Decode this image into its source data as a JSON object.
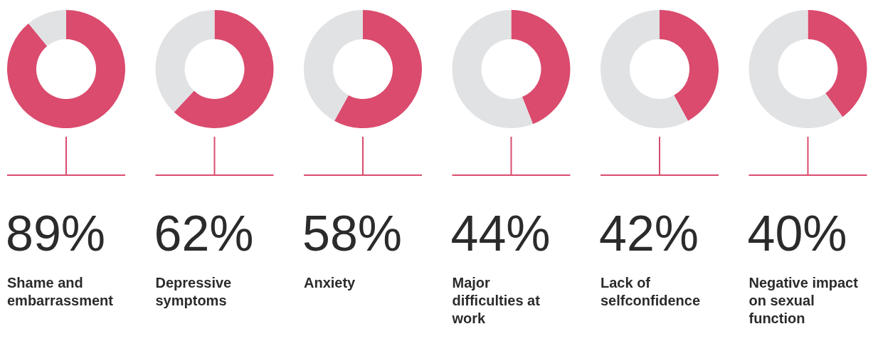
{
  "chart_data": [
    {
      "type": "donut",
      "title": "Shame and embarrassment",
      "categories": [
        null,
        null
      ],
      "values": [
        89,
        11
      ],
      "colors": [
        "#da4b6e",
        "#e1e2e4"
      ],
      "annotations": [
        "89%"
      ]
    },
    {
      "type": "donut",
      "title": "Depressive symptoms",
      "categories": [
        null,
        null
      ],
      "values": [
        62,
        38
      ],
      "colors": [
        "#da4b6e",
        "#e1e2e4"
      ],
      "annotations": [
        "62%"
      ]
    },
    {
      "type": "donut",
      "title": "Anxiety",
      "categories": [
        null,
        null
      ],
      "values": [
        58,
        42
      ],
      "colors": [
        "#da4b6e",
        "#e1e2e4"
      ],
      "annotations": [
        "58%"
      ]
    },
    {
      "type": "donut",
      "title": "Major difficulties at work",
      "categories": [
        null,
        null
      ],
      "values": [
        44,
        56
      ],
      "colors": [
        "#da4b6e",
        "#e1e2e4"
      ],
      "annotations": [
        "44%"
      ]
    },
    {
      "type": "donut",
      "title": "Lack of selfconfidence",
      "categories": [
        null,
        null
      ],
      "values": [
        42,
        58
      ],
      "colors": [
        "#da4b6e",
        "#e1e2e4"
      ],
      "annotations": [
        "42%"
      ]
    },
    {
      "type": "donut",
      "title": "Negative impact on sexual function",
      "categories": [
        null,
        null
      ],
      "values": [
        40,
        60
      ],
      "colors": [
        "#da4b6e",
        "#e1e2e4"
      ],
      "annotations": [
        "40%"
      ]
    }
  ]
}
